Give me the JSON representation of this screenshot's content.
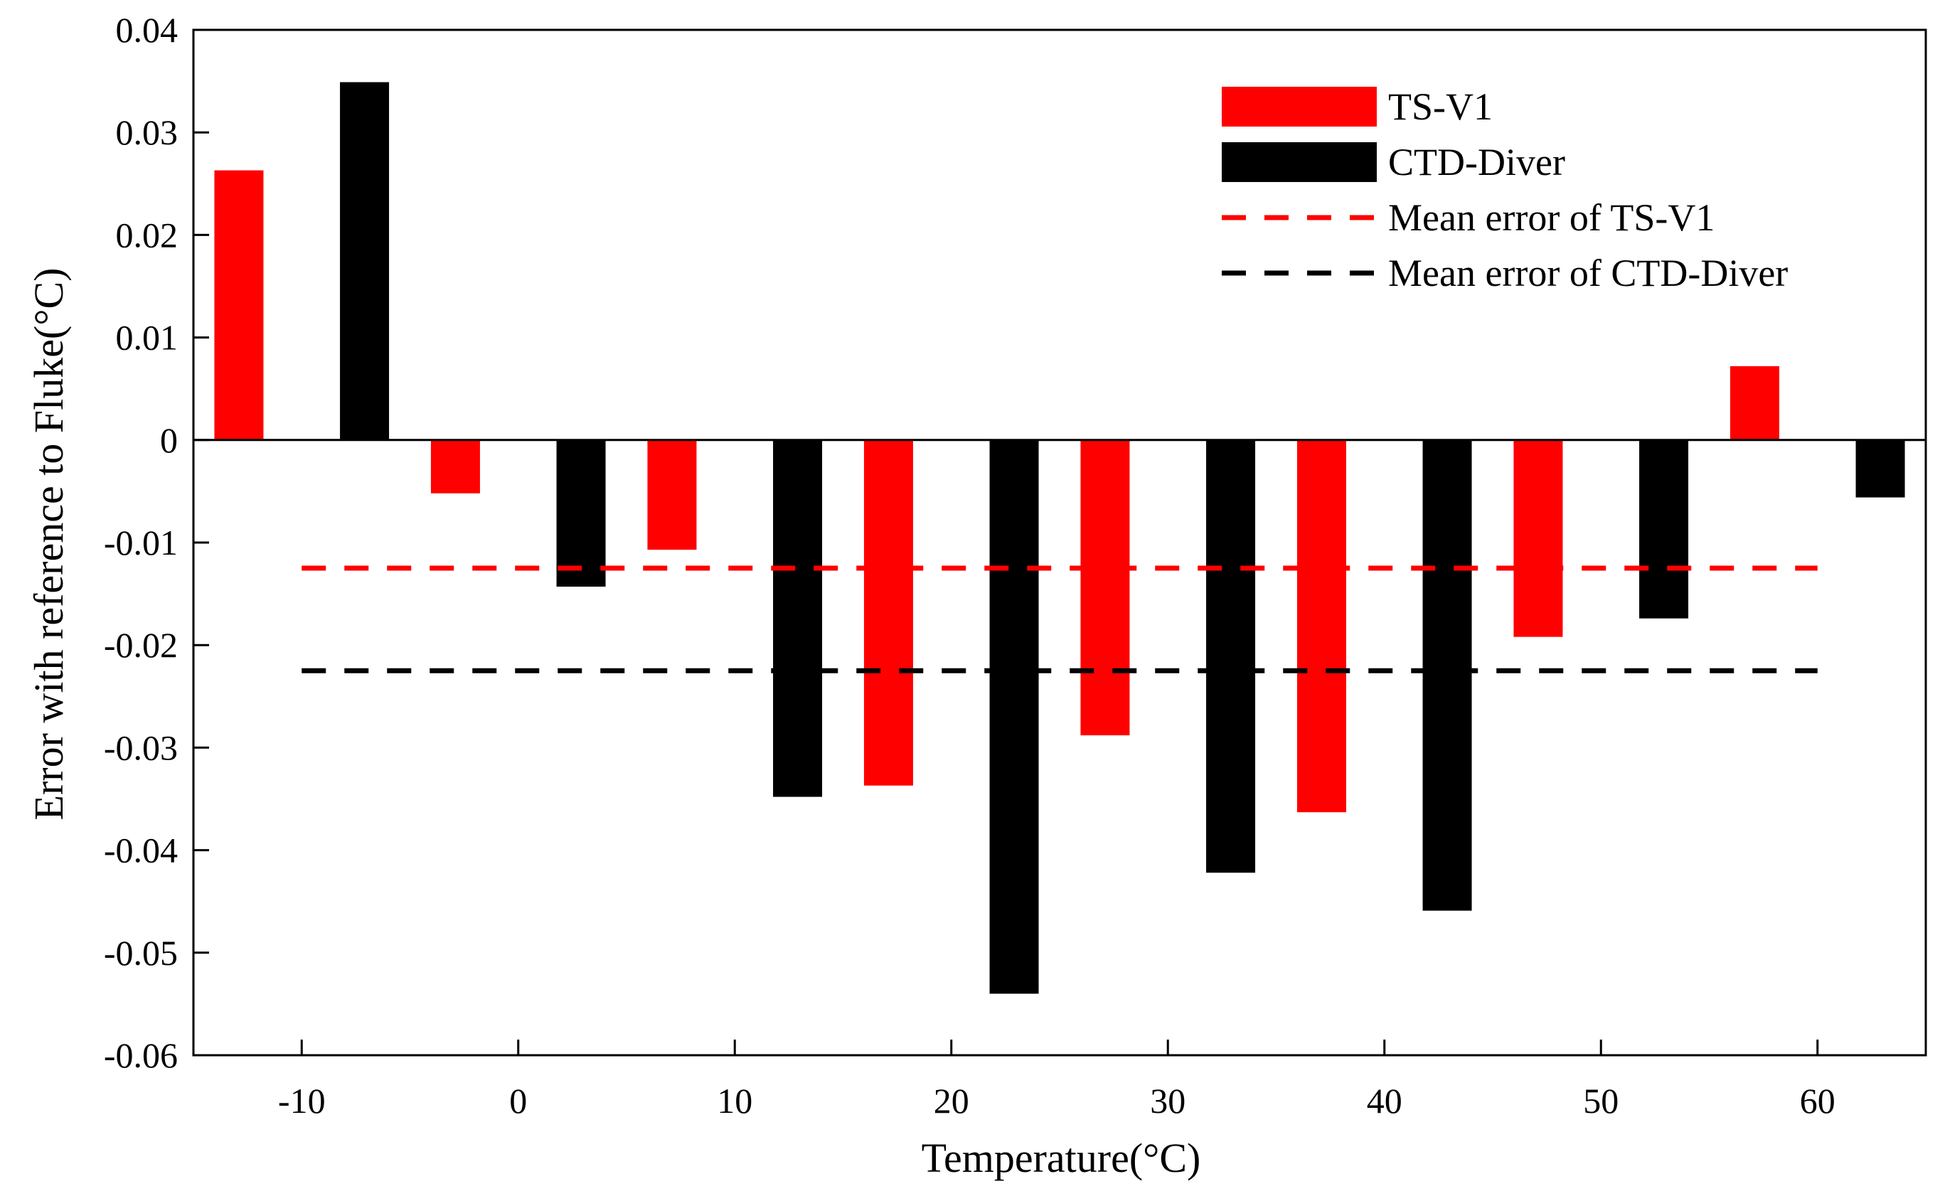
{
  "chart_data": {
    "type": "bar",
    "title": "",
    "xlabel": "Temperature(°C)",
    "ylabel": "Error with reference to Fluke(°C)",
    "xlim": [
      -15,
      65
    ],
    "ylim": [
      -0.06,
      0.04
    ],
    "xticks": [
      -10,
      0,
      10,
      20,
      30,
      40,
      50,
      60
    ],
    "xtick_labels": [
      "-10",
      "0",
      "10",
      "20",
      "30",
      "40",
      "50",
      "60"
    ],
    "yticks": [
      -0.06,
      -0.05,
      -0.04,
      -0.03,
      -0.02,
      -0.01,
      0,
      0.01,
      0.02,
      0.03,
      0.04
    ],
    "ytick_labels": [
      "-0.06",
      "-0.05",
      "-0.04",
      "-0.03",
      "-0.02",
      "-0.01",
      "0",
      "0.01",
      "0.02",
      "0.03",
      "0.04"
    ],
    "categories": [
      -10,
      0,
      10,
      20,
      30,
      40,
      50,
      60
    ],
    "series": [
      {
        "name": "TS-V1",
        "color": "#ff0000",
        "values": [
          0.0263,
          -0.0052,
          -0.0107,
          -0.0337,
          -0.0288,
          -0.0363,
          -0.0192,
          0.0072
        ]
      },
      {
        "name": "CTD-Diver",
        "color": "#000000",
        "values": [
          0.0349,
          -0.0143,
          -0.0348,
          -0.054,
          -0.0422,
          -0.0459,
          -0.0174,
          -0.0056
        ]
      }
    ],
    "mean_lines": [
      {
        "name": "Mean error of TS-V1",
        "color": "#ff0000",
        "value": -0.0125,
        "x_range": [
          -10,
          60
        ]
      },
      {
        "name": "Mean error of CTD-Diver",
        "color": "#000000",
        "value": -0.0225,
        "x_range": [
          -10,
          60
        ]
      }
    ],
    "zero_line": 0,
    "grid": false,
    "legend_position": "top-right"
  }
}
